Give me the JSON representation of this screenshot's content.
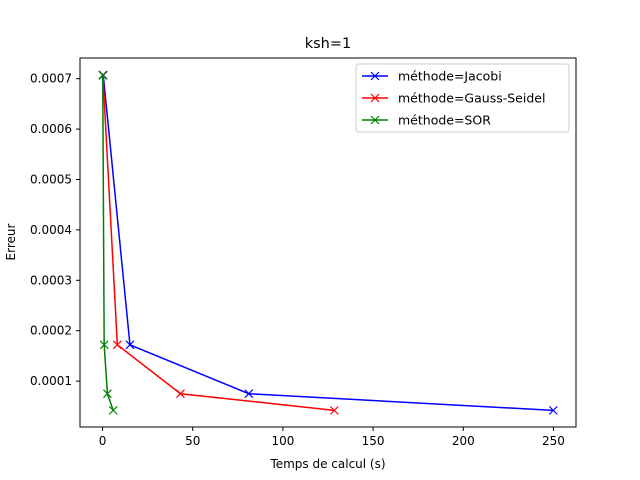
{
  "chart_data": {
    "type": "line",
    "title": "ksh=1",
    "xlabel": "Temps de calcul (s)",
    "ylabel": "Erreur",
    "xlim": [
      -12.5,
      262.5
    ],
    "ylim": [
      9e-06,
      0.000741
    ],
    "x_ticks": [
      0,
      50,
      100,
      150,
      200,
      250
    ],
    "x_tick_labels": [
      "0",
      "50",
      "100",
      "150",
      "200",
      "250"
    ],
    "y_ticks": [
      0.0001,
      0.0002,
      0.0003,
      0.0004,
      0.0005,
      0.0006,
      0.0007
    ],
    "y_tick_labels": [
      "0.0001",
      "0.0002",
      "0.0003",
      "0.0004",
      "0.0005",
      "0.0006",
      "0.0007"
    ],
    "grid": false,
    "legend_position": "top-right",
    "marker": "x",
    "series": [
      {
        "name": "méthode=Jacobi",
        "color": "#0000ff",
        "x": [
          0.4,
          15.2,
          81.1,
          249.9
        ],
        "y": [
          0.000707,
          0.000172,
          7.5e-05,
          4.2e-05
        ]
      },
      {
        "name": "méthode=Gauss-Seidel",
        "color": "#ff0000",
        "x": [
          0.2,
          8.2,
          43.2,
          128.5
        ],
        "y": [
          0.000707,
          0.000172,
          7.5e-05,
          4.2e-05
        ]
      },
      {
        "name": "méthode=SOR",
        "color": "#008000",
        "x": [
          0.1,
          0.9,
          2.7,
          5.9
        ],
        "y": [
          0.000707,
          0.000172,
          7.5e-05,
          4.2e-05
        ]
      }
    ]
  }
}
